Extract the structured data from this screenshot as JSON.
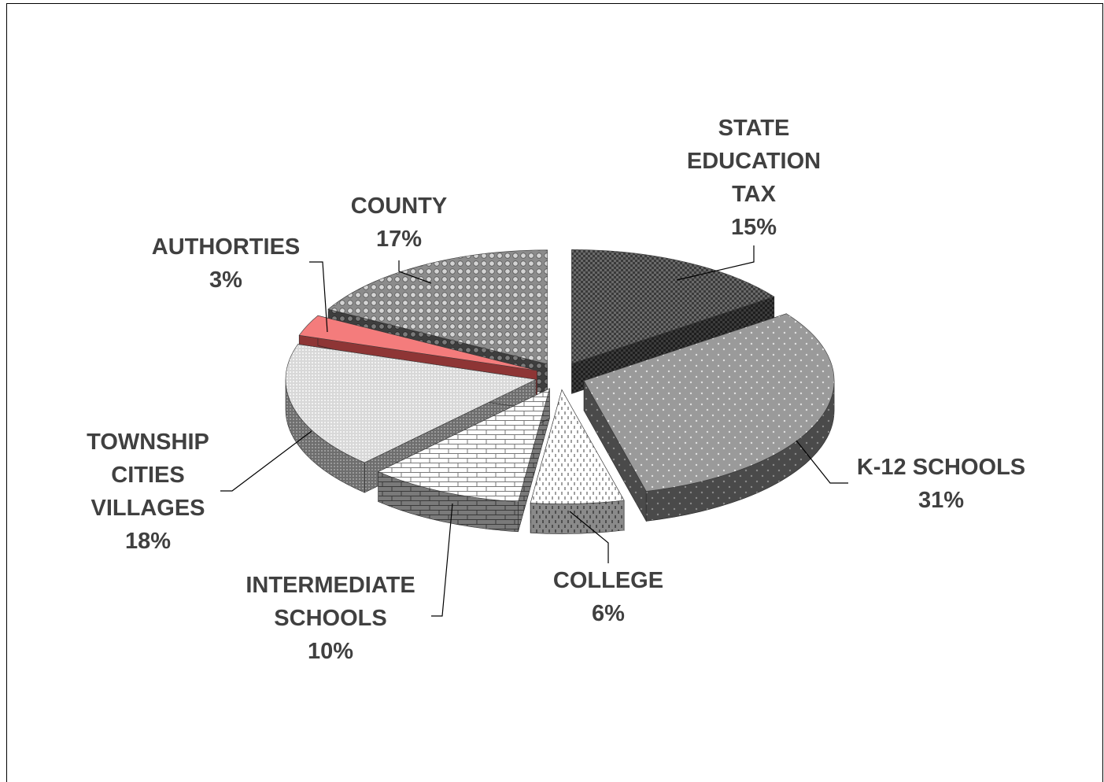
{
  "chart_data": {
    "type": "pie",
    "style": "3d-exploded",
    "slices": [
      {
        "label_lines": [
          "STATE",
          "EDUCATION",
          "TAX"
        ],
        "pct_label": "15%",
        "value": 15,
        "pattern": "dark-checker"
      },
      {
        "label_lines": [
          "K-12 SCHOOLS"
        ],
        "pct_label": "31%",
        "value": 31,
        "pattern": "gray-dots"
      },
      {
        "label_lines": [
          "COLLEGE"
        ],
        "pct_label": "6%",
        "value": 6,
        "pattern": "dashed-vertical"
      },
      {
        "label_lines": [
          "INTERMEDIATE",
          "SCHOOLS"
        ],
        "pct_label": "10%",
        "value": 10,
        "pattern": "brick"
      },
      {
        "label_lines": [
          "TOWNSHIP",
          "CITIES",
          "VILLAGES"
        ],
        "pct_label": "18%",
        "value": 18,
        "pattern": "light-grid"
      },
      {
        "label_lines": [
          "AUTHORTIES"
        ],
        "pct_label": "3%",
        "value": 3,
        "pattern": "solid-red",
        "color": "#f47c7c"
      },
      {
        "label_lines": [
          "COUNTY"
        ],
        "pct_label": "17%",
        "value": 17,
        "pattern": "circles"
      }
    ],
    "legend": "none",
    "data_labels": "outside-with-leader-lines"
  }
}
